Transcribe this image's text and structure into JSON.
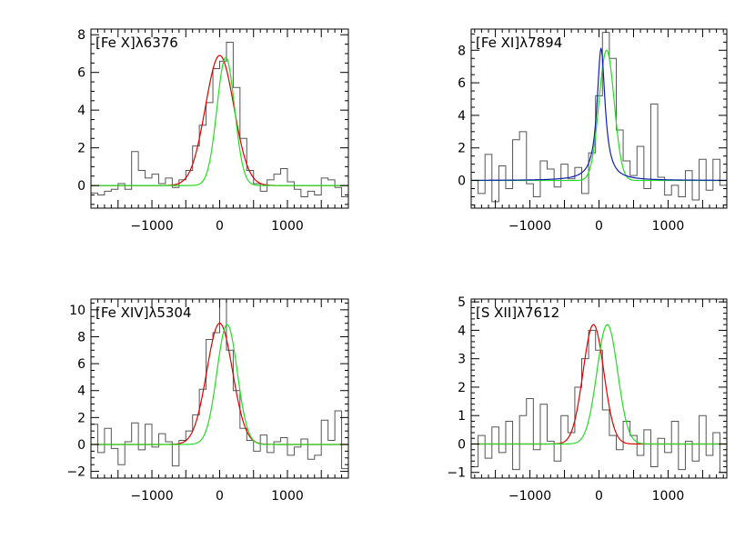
{
  "chart_data": [
    {
      "type": "line",
      "panel": "top-left",
      "title": "",
      "xlabel": "",
      "ylabel": "",
      "label": "[Fe X]λ6376",
      "xlim": [
        -1900,
        1900
      ],
      "ylim": [
        -1.2,
        8.3
      ],
      "xticks": [
        -1000,
        0,
        1000
      ],
      "yticks": [
        0,
        2,
        4,
        6,
        8
      ],
      "grid": false,
      "series": [
        {
          "kind": "step",
          "color": "#555555",
          "x": [
            -1850,
            -1750,
            -1650,
            -1550,
            -1450,
            -1350,
            -1250,
            -1150,
            -1050,
            -950,
            -850,
            -750,
            -650,
            -550,
            -450,
            -350,
            -250,
            -150,
            -50,
            50,
            150,
            250,
            350,
            450,
            550,
            650,
            750,
            850,
            950,
            1050,
            1150,
            1250,
            1350,
            1450,
            1550,
            1650,
            1750,
            1850
          ],
          "y": [
            -0.4,
            -0.5,
            -0.3,
            -0.2,
            0.1,
            -0.2,
            1.8,
            0.8,
            0.4,
            0.6,
            0.1,
            0.4,
            -0.1,
            0.3,
            0.8,
            2.1,
            3.2,
            4.4,
            6.2,
            6.6,
            7.6,
            5.2,
            2.5,
            0.8,
            0.1,
            -0.3,
            0.3,
            0.6,
            0.9,
            0.2,
            -0.2,
            -0.6,
            -0.3,
            -0.5,
            0.4,
            0.3,
            -0.1,
            -0.6
          ]
        },
        {
          "kind": "gaussian",
          "color": "#e00000",
          "center": 0,
          "amplitude": 6.9,
          "sigma": 210,
          "baseline": 0
        },
        {
          "kind": "gaussian",
          "color": "#22dd22",
          "center": 90,
          "amplitude": 6.8,
          "sigma": 130,
          "baseline": 0
        }
      ]
    },
    {
      "type": "line",
      "panel": "top-right",
      "title": "",
      "xlabel": "",
      "ylabel": "",
      "label": "[Fe XI]λ7894",
      "xlim": [
        -1850,
        1850
      ],
      "ylim": [
        -1.7,
        9.3
      ],
      "xticks": [
        -1000,
        0,
        1000
      ],
      "yticks": [
        0,
        2,
        4,
        6,
        8
      ],
      "grid": false,
      "series": [
        {
          "kind": "step",
          "color": "#555555",
          "x": [
            -1800,
            -1700,
            -1600,
            -1500,
            -1400,
            -1300,
            -1200,
            -1100,
            -1000,
            -900,
            -800,
            -700,
            -600,
            -500,
            -400,
            -300,
            -200,
            -100,
            0,
            100,
            200,
            300,
            400,
            500,
            600,
            700,
            800,
            900,
            1000,
            1100,
            1200,
            1300,
            1400,
            1500,
            1600,
            1700,
            1800
          ],
          "y": [
            0,
            -0.8,
            1.6,
            -1.3,
            0.9,
            -0.5,
            2.5,
            3.0,
            -0.2,
            -1.0,
            1.2,
            0.7,
            -0.4,
            1.0,
            0.1,
            0.8,
            -0.8,
            1.7,
            5.2,
            9.1,
            7.5,
            3.1,
            1.2,
            0.3,
            2.1,
            -0.5,
            4.7,
            0.2,
            -0.9,
            -0.3,
            -1.0,
            0.6,
            -1.2,
            1.3,
            -0.6,
            1.3,
            -0.3
          ]
        },
        {
          "kind": "gaussian",
          "color": "#22dd22",
          "center": 110,
          "amplitude": 8.0,
          "sigma": 110,
          "baseline": 0
        },
        {
          "kind": "lorentz",
          "color": "#1020b0",
          "center": 30,
          "amplitude": 8.1,
          "gamma": 70,
          "baseline": 0
        }
      ]
    },
    {
      "type": "line",
      "panel": "bottom-left",
      "title": "",
      "xlabel": "",
      "ylabel": "",
      "label": "[Fe XIV]λ5304",
      "xlim": [
        -1900,
        1900
      ],
      "ylim": [
        -2.5,
        10.8
      ],
      "xticks": [
        -1000,
        0,
        1000
      ],
      "yticks": [
        -2,
        0,
        2,
        4,
        6,
        8,
        10
      ],
      "grid": false,
      "series": [
        {
          "kind": "step",
          "color": "#555555",
          "x": [
            -1850,
            -1750,
            -1650,
            -1550,
            -1450,
            -1350,
            -1250,
            -1150,
            -1050,
            -950,
            -850,
            -750,
            -650,
            -550,
            -450,
            -350,
            -250,
            -150,
            -50,
            50,
            150,
            250,
            350,
            450,
            550,
            650,
            750,
            850,
            950,
            1050,
            1150,
            1250,
            1350,
            1450,
            1550,
            1650,
            1750,
            1850
          ],
          "y": [
            1.5,
            -0.6,
            1.2,
            -0.3,
            -1.5,
            0.2,
            1.6,
            -0.4,
            1.5,
            -0.2,
            0.8,
            0.2,
            -1.6,
            0.3,
            1.0,
            2.2,
            4.1,
            7.8,
            8.3,
            10.8,
            7.0,
            4.0,
            1.2,
            0.3,
            -0.5,
            0.7,
            -0.6,
            0.2,
            0.5,
            -0.8,
            -0.2,
            0.4,
            -1.1,
            -0.8,
            1.8,
            0.3,
            2.5,
            -1.8
          ]
        },
        {
          "kind": "gaussian",
          "color": "#e00000",
          "center": 0,
          "amplitude": 9.0,
          "sigma": 190,
          "baseline": 0
        },
        {
          "kind": "gaussian",
          "color": "#22dd22",
          "center": 110,
          "amplitude": 8.9,
          "sigma": 150,
          "baseline": 0
        }
      ]
    },
    {
      "type": "line",
      "panel": "bottom-right",
      "title": "",
      "xlabel": "",
      "ylabel": "",
      "label": "[S XII]λ7612",
      "xlim": [
        -1850,
        1850
      ],
      "ylim": [
        -1.2,
        5.1
      ],
      "xticks": [
        -1000,
        0,
        1000
      ],
      "yticks": [
        -1,
        0,
        1,
        2,
        3,
        4,
        5
      ],
      "grid": false,
      "series": [
        {
          "kind": "step",
          "color": "#555555",
          "x": [
            -1800,
            -1700,
            -1600,
            -1500,
            -1400,
            -1300,
            -1200,
            -1100,
            -1000,
            -900,
            -800,
            -700,
            -600,
            -500,
            -400,
            -300,
            -200,
            -100,
            0,
            100,
            200,
            300,
            400,
            500,
            600,
            700,
            800,
            900,
            1000,
            1100,
            1200,
            1300,
            1400,
            1500,
            1600,
            1700,
            1800
          ],
          "y": [
            -0.8,
            0.3,
            -0.5,
            0.6,
            -0.3,
            0.8,
            -0.9,
            1.0,
            1.6,
            -0.2,
            1.4,
            0.1,
            -0.6,
            1.0,
            0.4,
            2.0,
            3.0,
            4.0,
            3.3,
            1.2,
            0.3,
            -0.2,
            0.8,
            0.3,
            -0.4,
            0.5,
            -0.8,
            0.2,
            -0.3,
            0.8,
            -0.9,
            0.1,
            -0.6,
            1.0,
            -0.4,
            0.4,
            -1.0
          ]
        },
        {
          "kind": "gaussian",
          "color": "#e00000",
          "center": -80,
          "amplitude": 4.2,
          "sigma": 150,
          "baseline": 0
        },
        {
          "kind": "gaussian",
          "color": "#22dd22",
          "center": 120,
          "amplitude": 4.2,
          "sigma": 150,
          "baseline": 0
        }
      ]
    }
  ]
}
